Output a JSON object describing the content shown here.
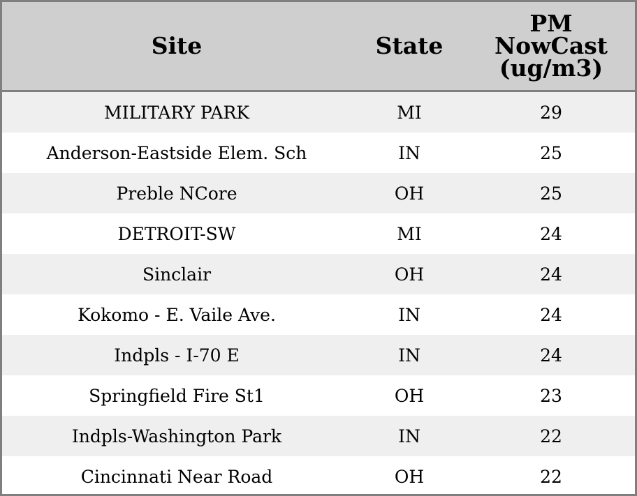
{
  "chart_data": {
    "type": "table",
    "columns": [
      "Site",
      "State",
      "PM\nNowCast\n(ug/m3)"
    ],
    "rows": [
      [
        "MILITARY PARK",
        "MI",
        "29"
      ],
      [
        "Anderson-Eastside Elem. Sch",
        "IN",
        "25"
      ],
      [
        "Preble NCore",
        "OH",
        "25"
      ],
      [
        "DETROIT-SW",
        "MI",
        "24"
      ],
      [
        "Sinclair",
        "OH",
        "24"
      ],
      [
        "Kokomo - E. Vaile Ave.",
        "IN",
        "24"
      ],
      [
        "Indpls - I-70 E",
        "IN",
        "24"
      ],
      [
        "Springfield Fire St1",
        "OH",
        "23"
      ],
      [
        "Indpls-Washington Park",
        "IN",
        "22"
      ],
      [
        "Cincinnati Near Road",
        "OH",
        "22"
      ]
    ]
  },
  "colors": {
    "header_bg": "#cfcfcf",
    "stripe_bg": "#efefef",
    "border": "#7f7f7f"
  }
}
